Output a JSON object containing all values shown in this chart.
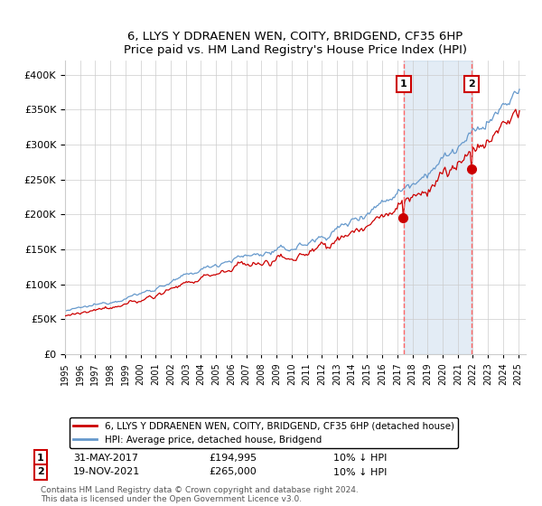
{
  "title": "6, LLYS Y DDRAENEN WEN, COITY, BRIDGEND, CF35 6HP",
  "subtitle": "Price paid vs. HM Land Registry's House Price Index (HPI)",
  "legend_label_red": "6, LLYS Y DDRAENEN WEN, COITY, BRIDGEND, CF35 6HP (detached house)",
  "legend_label_blue": "HPI: Average price, detached house, Bridgend",
  "annotation1_date": "31-MAY-2017",
  "annotation1_price": "£194,995",
  "annotation1_note": "10% ↓ HPI",
  "annotation2_date": "19-NOV-2021",
  "annotation2_price": "£265,000",
  "annotation2_note": "10% ↓ HPI",
  "footer": "Contains HM Land Registry data © Crown copyright and database right 2024.\nThis data is licensed under the Open Government Licence v3.0.",
  "ylim_min": 0,
  "ylim_max": 420000,
  "t1": 2017.417,
  "t2": 2021.917,
  "price1": 194995,
  "price2": 265000,
  "red_color": "#cc0000",
  "blue_color": "#6699cc",
  "blue_fill_color": "#ddeeff",
  "vline_color": "#ff6666",
  "annotation_box_color": "#cc0000",
  "background_color": "#ffffff",
  "grid_color": "#cccccc",
  "xmin": 1995,
  "xmax": 2025.5
}
